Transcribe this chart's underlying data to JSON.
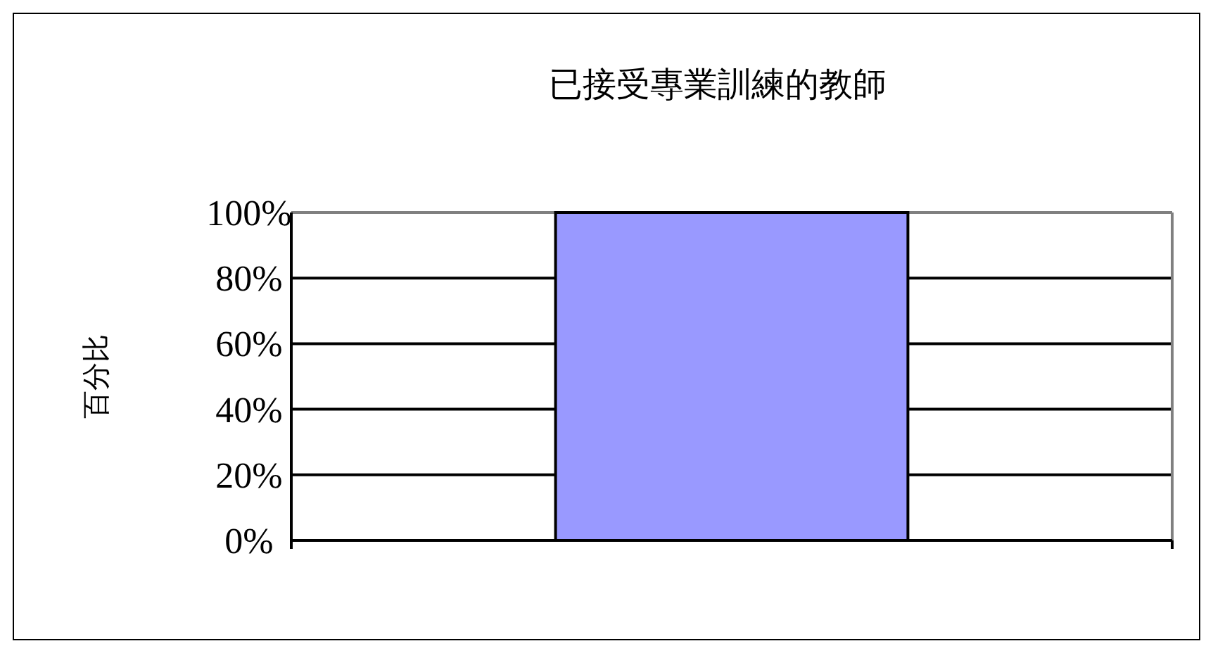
{
  "chart_data": {
    "type": "bar",
    "title": "已接受專業訓練的教師",
    "ylabel": "百分比",
    "categories": [
      null
    ],
    "series": [
      {
        "color": "#9999ff",
        "values": [
          100
        ]
      }
    ],
    "ylim": [
      0,
      100
    ],
    "yticks": [
      {
        "value": 0,
        "label": "0%"
      },
      {
        "value": 20,
        "label": "20%"
      },
      {
        "value": 40,
        "label": "40%"
      },
      {
        "value": 60,
        "label": "60%"
      },
      {
        "value": 80,
        "label": "80%"
      },
      {
        "value": 100,
        "label": "100%"
      }
    ],
    "grid": "y"
  }
}
